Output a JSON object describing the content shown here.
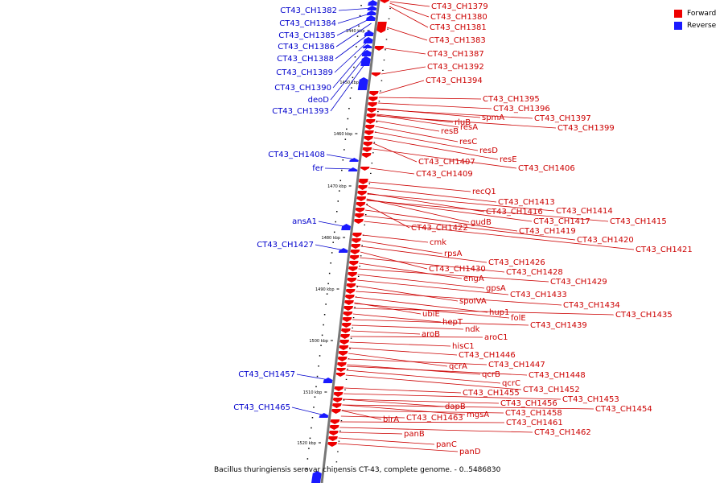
{
  "colors": {
    "forward": "#ee0000",
    "reverse": "#1a1aff",
    "label_forward": "#cc0000",
    "label_reverse": "#0000cc",
    "axis": "#777777"
  },
  "legend": {
    "forward": "Forward",
    "reverse": "Reverse"
  },
  "caption": "Bacillus thuringiensis serovar chinensis CT-43, complete genome. - 0..5486830",
  "ticks": [
    "1440 kbp",
    "1450 kbp",
    "1460 kbp",
    "1470 kbp",
    "1480 kbp",
    "1490 kbp",
    "1500 kbp",
    "1510 kbp",
    "1520 kbp"
  ],
  "reverse_genes": [
    "CT43_CH1382",
    "CT43_CH1384",
    "CT43_CH1385",
    "CT43_CH1386",
    "CT43_CH1388",
    "CT43_CH1389",
    "CT43_CH1390",
    "deoD",
    "CT43_CH1393",
    "CT43_CH1408",
    "fer",
    "ansA1",
    "CT43_CH1427",
    "CT43_CH1457",
    "CT43_CH1465"
  ],
  "forward_genes": [
    "CT43_CH1379",
    "CT43_CH1380",
    "CT43_CH1381",
    "CT43_CH1383",
    "CT43_CH1387",
    "CT43_CH1392",
    "CT43_CH1394",
    "CT43_CH1395",
    "CT43_CH1396",
    "spmA",
    "CT43_CH1397",
    "rluB",
    "resA",
    "CT43_CH1399",
    "resB",
    "resC",
    "resD",
    "resE",
    "CT43_CH1407",
    "CT43_CH1406",
    "CT43_CH1409",
    "recQ1",
    "CT43_CH1413",
    "CT43_CH1416",
    "CT43_CH1414",
    "gudB",
    "CT43_CH1417",
    "CT43_CH1415",
    "CT43_CH1422",
    "CT43_CH1419",
    "CT43_CH1420",
    "cmk",
    "CT43_CH1421",
    "rpsA",
    "CT43_CH1426",
    "CT43_CH1430",
    "CT43_CH1428",
    "engA",
    "CT43_CH1429",
    "gpsA",
    "CT43_CH1433",
    "spoIVA",
    "CT43_CH1434",
    "hup1",
    "ubiE",
    "folE",
    "CT43_CH1435",
    "hepT",
    "CT43_CH1439",
    "ndk",
    "aroB",
    "aroC1",
    "hisC1",
    "CT43_CH1446",
    "qcrA",
    "CT43_CH1447",
    "qcrB",
    "CT43_CH1448",
    "qcrC",
    "CT43_CH1452",
    "CT43_CH1455",
    "CT43_CH1453",
    "CT43_CH1456",
    "dapB",
    "CT43_CH1454",
    "mgsA",
    "CT43_CH1458",
    "birA",
    "CT43_CH1463",
    "CT43_CH1461",
    "CT43_CH1462",
    "panB",
    "panC",
    "panD"
  ]
}
